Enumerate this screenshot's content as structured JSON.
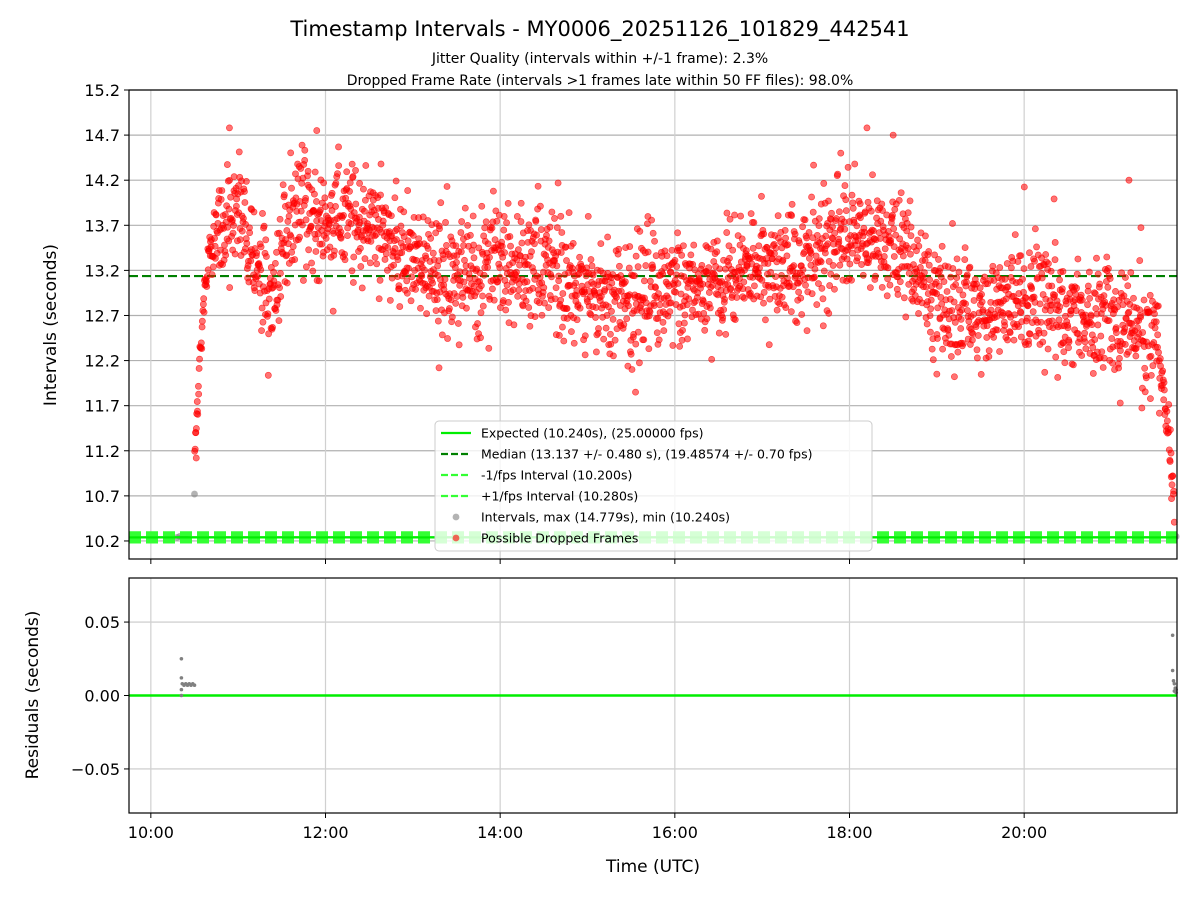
{
  "title": "Timestamp Intervals - MY0006_20251126_101829_442541",
  "subtitle_1": "Jitter Quality (intervals within +/-1 frame): 2.3%",
  "subtitle_2": "Dropped Frame Rate (intervals >1 frames late within 50 FF files): 98.0%",
  "colors": {
    "expected": "#00ee00",
    "median": "#008000",
    "fps_band": "#33ff33",
    "intervals": "#808080",
    "dropped": "#ff0000",
    "residual": "#808080"
  },
  "chart_data": [
    {
      "type": "scatter",
      "panel": "intervals",
      "ylabel": "Intervals (seconds)",
      "xlim_hours": [
        9.75,
        21.75
      ],
      "ylim": [
        10.0,
        15.2
      ],
      "y_ticks": [
        10.2,
        10.7,
        11.2,
        11.7,
        12.2,
        12.7,
        13.2,
        13.7,
        14.2,
        14.7,
        15.2
      ],
      "y_tick_labels": [
        "10.2",
        "10.7",
        "11.2",
        "11.7",
        "12.2",
        "12.7",
        "13.2",
        "13.7",
        "14.2",
        "14.7",
        "15.2"
      ],
      "x_ticks_hours": [
        10,
        12,
        14,
        16,
        18,
        20
      ],
      "grid": true,
      "reference_lines": {
        "expected": 10.24,
        "median": 13.137,
        "minus_fps": 10.2,
        "plus_fps": 10.28
      },
      "legend": [
        {
          "label": "Expected (10.240s), (25.00000 fps)",
          "style": "solid",
          "color_key": "expected"
        },
        {
          "label": "Median (13.137 +/- 0.480 s), (19.48574 +/- 0.70 fps)",
          "style": "dashed",
          "color_key": "median"
        },
        {
          "label": "-1/fps Interval (10.200s)",
          "style": "dashed",
          "color_key": "fps_band"
        },
        {
          "label": "+1/fps Interval (10.280s)",
          "style": "dashed",
          "color_key": "fps_band"
        },
        {
          "label": "Intervals, max (14.779s), min (10.240s)",
          "style": "marker",
          "color_key": "intervals"
        },
        {
          "label": "Possible Dropped Frames",
          "style": "marker",
          "color_key": "dropped"
        }
      ],
      "legend_position": "lower-center",
      "series": [
        {
          "name": "Intervals (normal)",
          "points": [
            [
              10.3,
              10.24
            ],
            [
              10.33,
              10.25
            ],
            [
              10.36,
              10.24
            ],
            [
              10.39,
              10.25
            ],
            [
              10.42,
              10.24
            ],
            [
              10.5,
              10.72
            ],
            [
              21.72,
              10.24
            ],
            [
              21.74,
              10.25
            ]
          ]
        },
        {
          "name": "Possible Dropped Frames (median trend)",
          "points": [
            [
              10.5,
              11.2
            ],
            [
              10.55,
              12.0
            ],
            [
              10.6,
              12.8
            ],
            [
              10.65,
              13.3
            ],
            [
              10.75,
              13.6
            ],
            [
              11.0,
              13.8
            ],
            [
              11.2,
              13.4
            ],
            [
              11.4,
              12.8
            ],
            [
              11.6,
              13.9
            ],
            [
              12.0,
              13.8
            ],
            [
              12.5,
              13.7
            ],
            [
              13.0,
              13.3
            ],
            [
              13.5,
              13.1
            ],
            [
              14.0,
              13.3
            ],
            [
              14.5,
              13.3
            ],
            [
              15.0,
              13.0
            ],
            [
              15.5,
              12.9
            ],
            [
              16.0,
              13.0
            ],
            [
              16.5,
              13.1
            ],
            [
              17.0,
              13.2
            ],
            [
              17.5,
              13.3
            ],
            [
              18.0,
              13.6
            ],
            [
              18.5,
              13.5
            ],
            [
              19.0,
              12.9
            ],
            [
              19.5,
              12.8
            ],
            [
              20.0,
              12.9
            ],
            [
              20.5,
              12.7
            ],
            [
              21.0,
              12.6
            ],
            [
              21.4,
              12.5
            ],
            [
              21.55,
              12.2
            ],
            [
              21.65,
              11.5
            ],
            [
              21.72,
              10.5
            ]
          ],
          "scatter_spread": 0.32,
          "outliers": [
            [
              10.9,
              14.78
            ],
            [
              11.9,
              14.75
            ],
            [
              18.2,
              14.78
            ],
            [
              18.5,
              14.7
            ],
            [
              17.9,
              14.5
            ],
            [
              21.2,
              14.2
            ],
            [
              15.55,
              11.85
            ],
            [
              21.1,
              11.73
            ],
            [
              13.3,
              12.12
            ],
            [
              19.0,
              12.05
            ],
            [
              10.52,
              11.12
            ]
          ]
        }
      ]
    },
    {
      "type": "scatter",
      "panel": "residuals",
      "xlabel": "Time (UTC)",
      "ylabel": "Residuals (seconds)",
      "xlim_hours": [
        9.75,
        21.75
      ],
      "ylim": [
        -0.08,
        0.08
      ],
      "y_ticks": [
        0.05,
        0.0,
        -0.05
      ],
      "y_tick_labels": [
        "0.05",
        "0.00",
        "−0.05"
      ],
      "x_ticks_hours": [
        10,
        12,
        14,
        16,
        18,
        20
      ],
      "x_tick_labels": [
        "10:00",
        "12:00",
        "14:00",
        "16:00",
        "18:00",
        "20:00"
      ],
      "zero_line": 0.0,
      "grid": true,
      "series": [
        {
          "name": "Residuals",
          "points": [
            [
              10.35,
              0.025
            ],
            [
              10.35,
              0.012
            ],
            [
              10.35,
              0.0
            ],
            [
              10.35,
              0.004
            ],
            [
              10.36,
              0.008
            ],
            [
              10.38,
              0.007
            ],
            [
              10.4,
              0.008
            ],
            [
              10.42,
              0.007
            ],
            [
              10.44,
              0.008
            ],
            [
              10.46,
              0.007
            ],
            [
              10.48,
              0.008
            ],
            [
              10.5,
              0.007
            ],
            [
              21.7,
              0.041
            ],
            [
              21.7,
              0.017
            ],
            [
              21.71,
              0.01
            ],
            [
              21.72,
              0.008
            ],
            [
              21.73,
              0.005
            ],
            [
              21.72,
              0.003
            ],
            [
              21.74,
              0.002
            ],
            [
              21.74,
              0.004
            ]
          ]
        }
      ]
    }
  ]
}
